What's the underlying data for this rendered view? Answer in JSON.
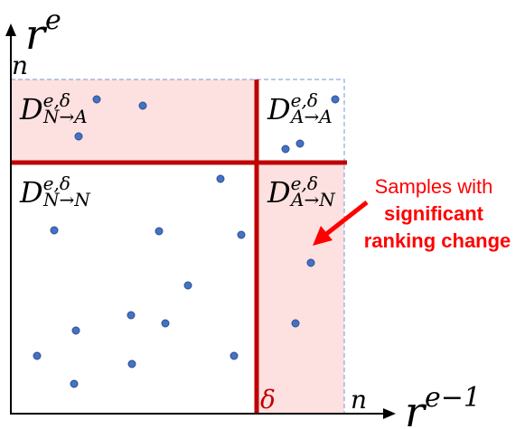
{
  "axes": {
    "y_axis_label": "r",
    "y_axis_sup": "e",
    "x_axis_label": "r",
    "x_axis_sup": "e−1",
    "y_max_label": "n",
    "x_max_label": "n",
    "threshold_label": "δ"
  },
  "regions": {
    "na": {
      "base": "D",
      "sup": "e,δ",
      "sub": "N→A"
    },
    "aa": {
      "base": "D",
      "sup": "e,δ",
      "sub": "A→A"
    },
    "nn": {
      "base": "D",
      "sup": "e,δ",
      "sub": "N→N"
    },
    "an": {
      "base": "D",
      "sup": "e,δ",
      "sub": "A→N"
    }
  },
  "annotation": {
    "line1": "Samples with",
    "line2": "significant",
    "line3": "ranking change"
  },
  "colors": {
    "accent": "#c00000",
    "annotation": "#ff0000",
    "region_fill": "#fde0e0",
    "point": "#4472c4",
    "point_edge": "#2f4f8f",
    "dashed_border": "#8fa9d9"
  }
}
